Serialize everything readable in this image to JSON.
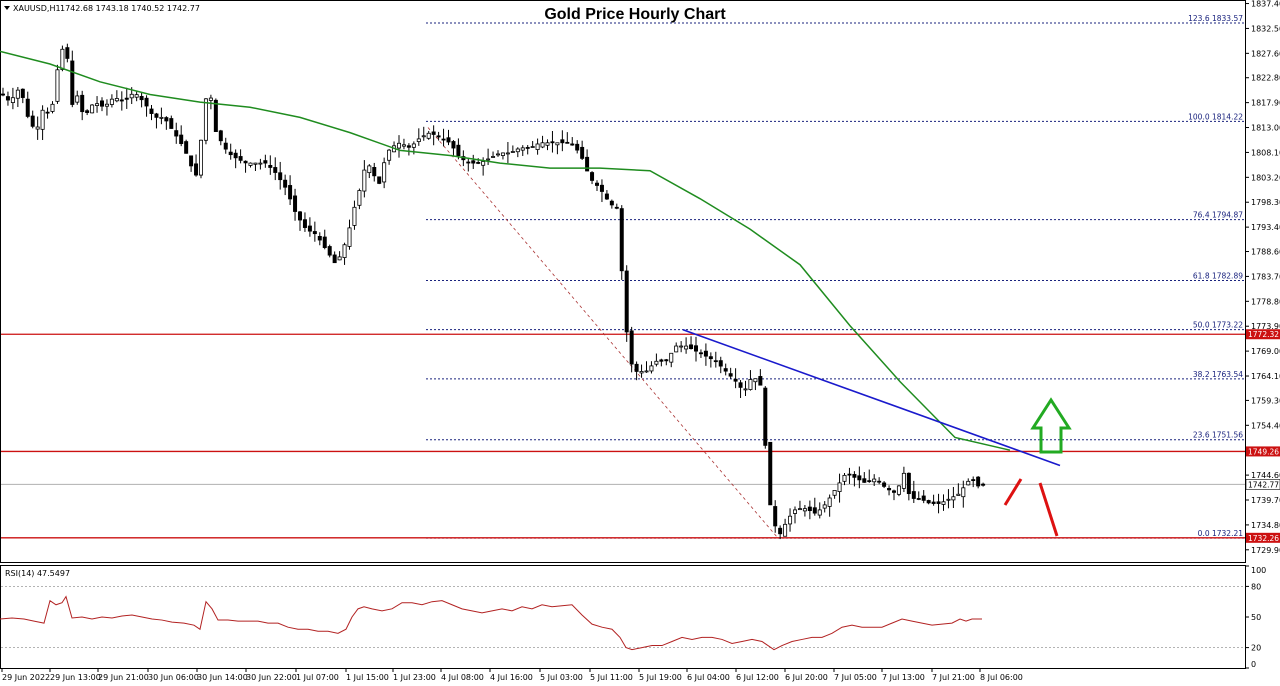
{
  "header": {
    "symbol": "XAUUSD,H1",
    "ohlc": "1742.68 1743.18 1740.52 1742.77",
    "title": "Gold Price Hourly Chart"
  },
  "rsi_header": "RSI(14) 47.5497",
  "colors": {
    "bull": "#ffffff",
    "bear": "#000000",
    "ma": "#1f8c1f",
    "trend": "#1a1acc",
    "fib": "#1a237e",
    "level": "#cc1111",
    "rsi": "#b22222",
    "arrow_up": "#22aa22",
    "arrow_down": "#dd1111"
  },
  "chart_data": [
    {
      "type": "candlestick",
      "symbol": "XAUUSD",
      "timeframe": "H1",
      "title": "Gold Price Hourly Chart",
      "ylim": [
        1727.7,
        1837.7
      ],
      "y_ticks": [
        "1837.40",
        "1832.50",
        "1827.60",
        "1822.80",
        "1817.90",
        "1813.00",
        "1808.10",
        "1803.20",
        "1798.30",
        "1793.40",
        "1788.60",
        "1783.70",
        "1778.80",
        "1773.90",
        "1769.00",
        "1764.10",
        "1759.30",
        "1754.40",
        "1749.50",
        "1744.60",
        "1739.70",
        "1734.80",
        "1729.90"
      ],
      "x_ticks": [
        "29 Jun 2022",
        "29 Jun 13:00",
        "29 Jun 21:00",
        "30 Jun 06:00",
        "30 Jun 14:00",
        "30 Jun 22:00",
        "1 Jul 07:00",
        "1 Jul 15:00",
        "1 Jul 23:00",
        "4 Jul 08:00",
        "4 Jul 16:00",
        "5 Jul 03:00",
        "5 Jul 11:00",
        "5 Jul 19:00",
        "6 Jul 04:00",
        "6 Jul 12:00",
        "6 Jul 20:00",
        "7 Jul 05:00",
        "7 Jul 13:00",
        "7 Jul 21:00",
        "8 Jul 06:00"
      ],
      "fib_levels": [
        {
          "label": "123.6 1833.57",
          "value": 1833.57
        },
        {
          "label": "100.0 1814.22",
          "value": 1814.22
        },
        {
          "label": "76.4 1794.87",
          "value": 1794.87
        },
        {
          "label": "61.8 1782.89",
          "value": 1782.89
        },
        {
          "label": "50.0 1773.22",
          "value": 1773.22
        },
        {
          "label": "38.2 1763.54",
          "value": 1763.54
        },
        {
          "label": "23.6 1751.56",
          "value": 1751.56
        },
        {
          "label": "0.0 1732.21",
          "value": 1732.21
        }
      ],
      "horizontal_levels": [
        {
          "label": "1772.32",
          "value": 1772.32
        },
        {
          "label": "1749.26",
          "value": 1749.26
        },
        {
          "label": "1732.26",
          "value": 1732.26
        }
      ],
      "current_price": {
        "label": "1742.77",
        "value": 1742.77
      },
      "close_path": [
        [
          0,
          1820
        ],
        [
          10,
          1818
        ],
        [
          20,
          1821
        ],
        [
          28,
          1815
        ],
        [
          36,
          1812
        ],
        [
          45,
          1818
        ],
        [
          50,
          1814
        ],
        [
          57,
          1824
        ],
        [
          62,
          1828
        ],
        [
          66,
          1832
        ],
        [
          70,
          1816
        ],
        [
          76,
          1820
        ],
        [
          84,
          1815
        ],
        [
          94,
          1818
        ],
        [
          104,
          1817
        ],
        [
          114,
          1819
        ],
        [
          124,
          1818
        ],
        [
          134,
          1820
        ],
        [
          144,
          1818
        ],
        [
          154,
          1815
        ],
        [
          164,
          1815
        ],
        [
          174,
          1812
        ],
        [
          184,
          1809
        ],
        [
          192,
          1805
        ],
        [
          198,
          1803
        ],
        [
          204,
          1818
        ],
        [
          210,
          1820
        ],
        [
          216,
          1812
        ],
        [
          222,
          1810
        ],
        [
          228,
          1808
        ],
        [
          236,
          1807
        ],
        [
          246,
          1806
        ],
        [
          256,
          1806
        ],
        [
          266,
          1806
        ],
        [
          276,
          1804
        ],
        [
          286,
          1801
        ],
        [
          296,
          1796
        ],
        [
          306,
          1793
        ],
        [
          316,
          1792
        ],
        [
          326,
          1789
        ],
        [
          336,
          1786
        ],
        [
          343,
          1789
        ],
        [
          348,
          1792
        ],
        [
          354,
          1797
        ],
        [
          360,
          1801
        ],
        [
          366,
          1806
        ],
        [
          372,
          1805
        ],
        [
          378,
          1801
        ],
        [
          384,
          1806
        ],
        [
          390,
          1809
        ],
        [
          400,
          1810
        ],
        [
          410,
          1809
        ],
        [
          420,
          1811
        ],
        [
          430,
          1812
        ],
        [
          440,
          1811
        ],
        [
          450,
          1810
        ],
        [
          460,
          1807
        ],
        [
          470,
          1806
        ],
        [
          480,
          1806
        ],
        [
          490,
          1807
        ],
        [
          500,
          1808
        ],
        [
          510,
          1808
        ],
        [
          520,
          1809
        ],
        [
          530,
          1809
        ],
        [
          540,
          1810
        ],
        [
          550,
          1810
        ],
        [
          560,
          1810
        ],
        [
          570,
          1810
        ],
        [
          580,
          1808
        ],
        [
          590,
          1803
        ],
        [
          600,
          1801
        ],
        [
          610,
          1798
        ],
        [
          618,
          1797
        ],
        [
          622,
          1784
        ],
        [
          626,
          1774
        ],
        [
          630,
          1767
        ],
        [
          636,
          1765
        ],
        [
          646,
          1765
        ],
        [
          656,
          1767
        ],
        [
          666,
          1767
        ],
        [
          676,
          1770
        ],
        [
          686,
          1770
        ],
        [
          696,
          1769
        ],
        [
          706,
          1768
        ],
        [
          716,
          1767
        ],
        [
          726,
          1765
        ],
        [
          736,
          1763
        ],
        [
          744,
          1761
        ],
        [
          752,
          1764
        ],
        [
          760,
          1763
        ],
        [
          764,
          1755
        ],
        [
          768,
          1741
        ],
        [
          774,
          1735
        ],
        [
          780,
          1733
        ],
        [
          788,
          1736
        ],
        [
          796,
          1738
        ],
        [
          806,
          1738
        ],
        [
          816,
          1737
        ],
        [
          826,
          1739
        ],
        [
          836,
          1742
        ],
        [
          846,
          1745
        ],
        [
          856,
          1744
        ],
        [
          866,
          1743
        ],
        [
          876,
          1744
        ],
        [
          886,
          1742
        ],
        [
          896,
          1741
        ],
        [
          904,
          1745
        ],
        [
          910,
          1740
        ],
        [
          920,
          1740
        ],
        [
          930,
          1739
        ],
        [
          940,
          1739
        ],
        [
          950,
          1740
        ],
        [
          960,
          1741
        ],
        [
          966,
          1743
        ],
        [
          972,
          1744
        ],
        [
          980,
          1742
        ],
        [
          984,
          1742.77
        ]
      ],
      "ma_path": [
        [
          0,
          1828
        ],
        [
          50,
          1825.5
        ],
        [
          100,
          1822
        ],
        [
          150,
          1819.5
        ],
        [
          200,
          1818
        ],
        [
          250,
          1817
        ],
        [
          300,
          1815
        ],
        [
          350,
          1812
        ],
        [
          400,
          1808.5
        ],
        [
          450,
          1807.5
        ],
        [
          500,
          1806
        ],
        [
          550,
          1805
        ],
        [
          600,
          1805
        ],
        [
          650,
          1804.5
        ],
        [
          700,
          1799
        ],
        [
          750,
          1793
        ],
        [
          800,
          1786
        ],
        [
          850,
          1774
        ],
        [
          900,
          1763
        ],
        [
          955,
          1752
        ],
        [
          1010,
          1749.5
        ]
      ],
      "trend_line": {
        "from": [
          683,
          1773.2
        ],
        "to": [
          1060,
          1746.5
        ]
      },
      "diagonal_line": {
        "from": [
          428,
          1813
        ],
        "to": [
          778,
          1732.2
        ]
      }
    },
    {
      "type": "line",
      "title": "RSI(14) 47.5497",
      "ylim": [
        0,
        100
      ],
      "y_ticks": [
        "100",
        "80",
        "50",
        "20",
        "0"
      ],
      "points": [
        [
          0,
          48
        ],
        [
          12,
          49
        ],
        [
          24,
          48
        ],
        [
          34,
          46
        ],
        [
          44,
          44
        ],
        [
          50,
          66
        ],
        [
          56,
          62
        ],
        [
          62,
          64
        ],
        [
          66,
          70
        ],
        [
          72,
          49
        ],
        [
          82,
          50
        ],
        [
          92,
          48
        ],
        [
          102,
          50
        ],
        [
          112,
          49
        ],
        [
          122,
          51
        ],
        [
          132,
          52
        ],
        [
          142,
          50
        ],
        [
          152,
          48
        ],
        [
          162,
          47
        ],
        [
          172,
          45
        ],
        [
          184,
          44
        ],
        [
          194,
          42
        ],
        [
          200,
          38
        ],
        [
          206,
          65
        ],
        [
          212,
          58
        ],
        [
          218,
          47
        ],
        [
          228,
          47
        ],
        [
          238,
          46
        ],
        [
          248,
          46
        ],
        [
          258,
          46
        ],
        [
          268,
          44
        ],
        [
          278,
          44
        ],
        [
          288,
          40
        ],
        [
          298,
          38
        ],
        [
          308,
          38
        ],
        [
          318,
          36
        ],
        [
          328,
          36
        ],
        [
          338,
          34
        ],
        [
          346,
          38
        ],
        [
          352,
          50
        ],
        [
          358,
          58
        ],
        [
          364,
          60
        ],
        [
          372,
          58
        ],
        [
          382,
          56
        ],
        [
          392,
          58
        ],
        [
          402,
          64
        ],
        [
          412,
          64
        ],
        [
          422,
          62
        ],
        [
          432,
          65
        ],
        [
          442,
          66
        ],
        [
          452,
          62
        ],
        [
          462,
          58
        ],
        [
          472,
          56
        ],
        [
          482,
          54
        ],
        [
          492,
          56
        ],
        [
          502,
          58
        ],
        [
          512,
          56
        ],
        [
          522,
          60
        ],
        [
          532,
          58
        ],
        [
          542,
          62
        ],
        [
          552,
          60
        ],
        [
          562,
          61
        ],
        [
          572,
          62
        ],
        [
          582,
          52
        ],
        [
          592,
          43
        ],
        [
          602,
          40
        ],
        [
          612,
          38
        ],
        [
          620,
          30
        ],
        [
          626,
          20
        ],
        [
          632,
          18
        ],
        [
          642,
          20
        ],
        [
          652,
          22
        ],
        [
          662,
          22
        ],
        [
          672,
          26
        ],
        [
          682,
          30
        ],
        [
          692,
          28
        ],
        [
          702,
          30
        ],
        [
          712,
          30
        ],
        [
          722,
          28
        ],
        [
          732,
          24
        ],
        [
          742,
          26
        ],
        [
          752,
          28
        ],
        [
          762,
          26
        ],
        [
          768,
          22
        ],
        [
          774,
          18
        ],
        [
          782,
          22
        ],
        [
          792,
          26
        ],
        [
          802,
          28
        ],
        [
          812,
          30
        ],
        [
          822,
          30
        ],
        [
          832,
          34
        ],
        [
          842,
          40
        ],
        [
          852,
          42
        ],
        [
          862,
          40
        ],
        [
          872,
          40
        ],
        [
          882,
          40
        ],
        [
          892,
          44
        ],
        [
          902,
          48
        ],
        [
          912,
          46
        ],
        [
          922,
          44
        ],
        [
          932,
          42
        ],
        [
          942,
          43
        ],
        [
          952,
          44
        ],
        [
          960,
          48
        ],
        [
          966,
          46
        ],
        [
          972,
          48
        ],
        [
          982,
          48
        ]
      ]
    }
  ]
}
